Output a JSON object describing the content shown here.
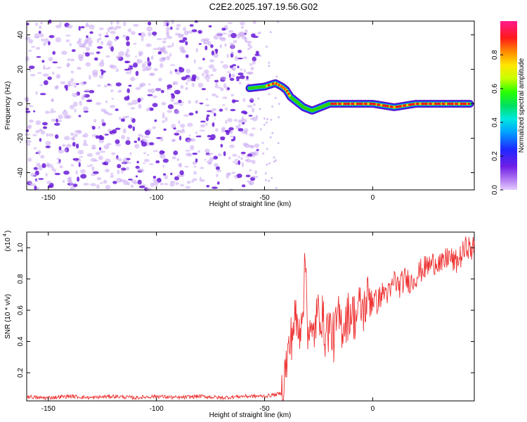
{
  "title": "C2E2.2025.197.19.56.G02",
  "colors": {
    "snr_line": "#ee3333",
    "scatter_dots": "#6a1bd8",
    "axis": "#000000"
  },
  "chart_data": [
    {
      "type": "scatter",
      "title": "C2E2.2025.197.19.56.G02",
      "xlabel": "Height of straight line (km)",
      "ylabel": "Frequency (Hz)",
      "xlim": [
        -160,
        47
      ],
      "ylim": [
        -50,
        48
      ],
      "x_ticks": [
        -150,
        -100,
        -50,
        0
      ],
      "y_ticks": [
        -40,
        -20,
        0,
        20,
        40
      ],
      "noise_region": {
        "x_range": [
          -160,
          -53
        ],
        "y_range": [
          -50,
          48
        ]
      },
      "series": [
        {
          "x": [
            -57,
            -50,
            -45,
            -42,
            -40,
            -38,
            -36,
            -34,
            -32,
            -30,
            -28,
            -26,
            -24,
            -22,
            -20,
            -15,
            -10,
            -5,
            0,
            5,
            10,
            15,
            20,
            25,
            30,
            35,
            40,
            45
          ],
          "y": [
            9,
            10,
            12,
            10,
            8,
            4,
            2,
            0,
            -2,
            -3,
            -4,
            -3,
            -2,
            -1,
            0,
            0,
            0,
            0,
            0,
            -1,
            -2,
            -1,
            0,
            0,
            0,
            0,
            0,
            0
          ]
        }
      ],
      "colorbar": {
        "label": "Normalized spectral amplitude",
        "range": [
          0.0,
          1.0
        ],
        "ticks": [
          "0.0",
          "0.2",
          "0.4",
          "0.6",
          "0.8"
        ]
      }
    },
    {
      "type": "line",
      "xlabel": "Height of straight line (km)",
      "ylabel": "SNR (10 * v/v)",
      "y_multiplier": "(x10",
      "y_multiplier_exp": "4",
      "xlim": [
        -160,
        47
      ],
      "ylim": [
        0.02,
        1.1
      ],
      "x_ticks": [
        -150,
        -100,
        -50,
        0
      ],
      "y_ticks": [
        "0.2",
        "0.4",
        "0.6",
        "0.8",
        "1.0"
      ],
      "series": [
        {
          "x": [
            -160,
            -155,
            -150,
            -140,
            -130,
            -120,
            -110,
            -100,
            -90,
            -80,
            -70,
            -60,
            -50,
            -45,
            -42,
            -40,
            -38,
            -36,
            -34,
            -32,
            -31,
            -30,
            -28,
            -26,
            -24,
            -22,
            -20,
            -18,
            -16,
            -14,
            -12,
            -10,
            -8,
            -6,
            -4,
            -2,
            0,
            2,
            4,
            6,
            8,
            10,
            12,
            15,
            18,
            20,
            22,
            25,
            28,
            30,
            32,
            35,
            38,
            40,
            42,
            44,
            45,
            47
          ],
          "y": [
            0.05,
            0.04,
            0.04,
            0.05,
            0.04,
            0.05,
            0.04,
            0.05,
            0.04,
            0.05,
            0.04,
            0.05,
            0.05,
            0.06,
            0.07,
            0.25,
            0.4,
            0.55,
            0.45,
            0.7,
            0.92,
            0.5,
            0.4,
            0.55,
            0.6,
            0.45,
            0.5,
            0.42,
            0.55,
            0.5,
            0.55,
            0.6,
            0.55,
            0.62,
            0.6,
            0.7,
            0.68,
            0.65,
            0.7,
            0.72,
            0.7,
            0.8,
            0.75,
            0.8,
            0.78,
            0.82,
            0.85,
            0.88,
            0.9,
            0.92,
            0.88,
            0.95,
            0.9,
            0.93,
            0.97,
            1.02,
            0.98,
            1.0
          ]
        }
      ]
    }
  ]
}
